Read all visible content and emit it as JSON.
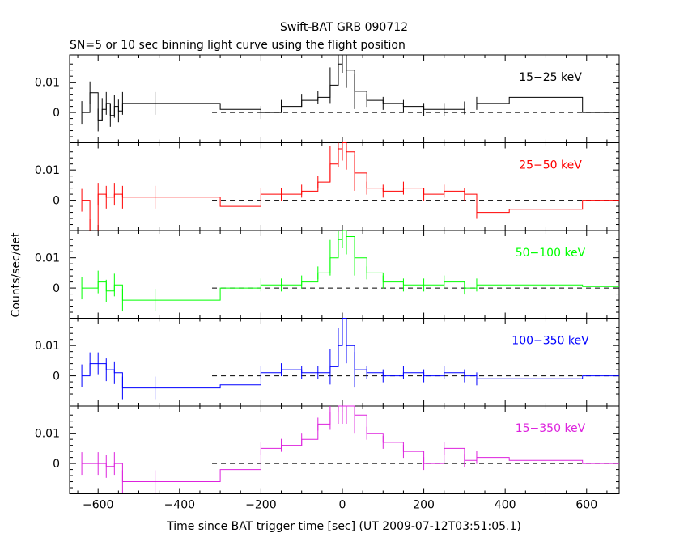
{
  "chart_data": {
    "type": "line",
    "title": "Swift-BAT GRB 090712",
    "subtitle": "SN=5 or 10 sec binning light curve using the flight position",
    "xlabel": "Time since BAT trigger time [sec] (UT 2009-07-12T03:51:05.1)",
    "ylabel": "Counts/sec/det",
    "xlim": [
      -670,
      680
    ],
    "ylim": [
      -0.01,
      0.019
    ],
    "x_ticks": [
      -600,
      -400,
      -200,
      0,
      200,
      400,
      600
    ],
    "y_ticks": [
      0,
      0.01
    ],
    "y_tick_labels": [
      "0",
      "0.01"
    ],
    "grid": false,
    "reference_line": {
      "y": 0,
      "x_range": [
        -320,
        680
      ],
      "style": "dashed"
    },
    "panels": [
      {
        "name": "15-25 keV",
        "label": "15−25 keV",
        "color": "#000000",
        "series": [
          {
            "x": -640,
            "y": 0.0
          },
          {
            "x": -620,
            "y": 0.0065
          },
          {
            "x": -600,
            "y": -0.0025
          },
          {
            "x": -590,
            "y": 0.001
          },
          {
            "x": -580,
            "y": 0.003
          },
          {
            "x": -570,
            "y": -0.001
          },
          {
            "x": -560,
            "y": 0.002
          },
          {
            "x": -550,
            "y": 0.0005
          },
          {
            "x": -540,
            "y": 0.003
          },
          {
            "x": -460,
            "y": 0.003
          },
          {
            "x": -300,
            "y": 0.001
          },
          {
            "x": -200,
            "y": 0.0
          },
          {
            "x": -150,
            "y": 0.002
          },
          {
            "x": -100,
            "y": 0.004
          },
          {
            "x": -60,
            "y": 0.005
          },
          {
            "x": -30,
            "y": 0.009
          },
          {
            "x": -10,
            "y": 0.016
          },
          {
            "x": 0,
            "y": 0.019
          },
          {
            "x": 10,
            "y": 0.014
          },
          {
            "x": 30,
            "y": 0.007
          },
          {
            "x": 60,
            "y": 0.004
          },
          {
            "x": 100,
            "y": 0.003
          },
          {
            "x": 150,
            "y": 0.002
          },
          {
            "x": 200,
            "y": 0.001
          },
          {
            "x": 250,
            "y": 0.001
          },
          {
            "x": 300,
            "y": 0.0015
          },
          {
            "x": 330,
            "y": 0.003
          },
          {
            "x": 410,
            "y": 0.005
          },
          {
            "x": 590,
            "y": 0.0
          },
          {
            "x": 680,
            "y": 0.0
          }
        ]
      },
      {
        "name": "25-50 keV",
        "label": "25−50 keV",
        "color": "#ff0000",
        "series": [
          {
            "x": -640,
            "y": 0.0
          },
          {
            "x": -620,
            "y": -0.01
          },
          {
            "x": -600,
            "y": 0.002
          },
          {
            "x": -580,
            "y": 0.001
          },
          {
            "x": -560,
            "y": 0.002
          },
          {
            "x": -540,
            "y": 0.001
          },
          {
            "x": -460,
            "y": 0.001
          },
          {
            "x": -300,
            "y": -0.002
          },
          {
            "x": -200,
            "y": 0.002
          },
          {
            "x": -150,
            "y": 0.002
          },
          {
            "x": -100,
            "y": 0.003
          },
          {
            "x": -60,
            "y": 0.006
          },
          {
            "x": -30,
            "y": 0.012
          },
          {
            "x": -10,
            "y": 0.017
          },
          {
            "x": 0,
            "y": 0.019
          },
          {
            "x": 10,
            "y": 0.016
          },
          {
            "x": 30,
            "y": 0.009
          },
          {
            "x": 60,
            "y": 0.004
          },
          {
            "x": 100,
            "y": 0.003
          },
          {
            "x": 150,
            "y": 0.004
          },
          {
            "x": 200,
            "y": 0.002
          },
          {
            "x": 250,
            "y": 0.003
          },
          {
            "x": 300,
            "y": 0.002
          },
          {
            "x": 330,
            "y": -0.004
          },
          {
            "x": 410,
            "y": -0.003
          },
          {
            "x": 590,
            "y": 0.0
          },
          {
            "x": 680,
            "y": 0.0
          }
        ]
      },
      {
        "name": "50-100 keV",
        "label": "50−100 keV",
        "color": "#00ff00",
        "series": [
          {
            "x": -640,
            "y": 0.0
          },
          {
            "x": -600,
            "y": 0.002
          },
          {
            "x": -580,
            "y": -0.001
          },
          {
            "x": -560,
            "y": 0.001
          },
          {
            "x": -540,
            "y": -0.004
          },
          {
            "x": -460,
            "y": -0.004
          },
          {
            "x": -300,
            "y": 0.0
          },
          {
            "x": -200,
            "y": 0.001
          },
          {
            "x": -150,
            "y": 0.001
          },
          {
            "x": -100,
            "y": 0.002
          },
          {
            "x": -60,
            "y": 0.005
          },
          {
            "x": -30,
            "y": 0.01
          },
          {
            "x": -10,
            "y": 0.016
          },
          {
            "x": 0,
            "y": 0.019
          },
          {
            "x": 10,
            "y": 0.017
          },
          {
            "x": 30,
            "y": 0.01
          },
          {
            "x": 60,
            "y": 0.005
          },
          {
            "x": 100,
            "y": 0.002
          },
          {
            "x": 150,
            "y": 0.001
          },
          {
            "x": 200,
            "y": 0.001
          },
          {
            "x": 250,
            "y": 0.002
          },
          {
            "x": 300,
            "y": 0.0
          },
          {
            "x": 330,
            "y": 0.001
          },
          {
            "x": 410,
            "y": 0.001
          },
          {
            "x": 590,
            "y": 0.0005
          },
          {
            "x": 680,
            "y": 0.0005
          }
        ]
      },
      {
        "name": "100-350 keV",
        "label": "100−350 keV",
        "color": "#0000ff",
        "series": [
          {
            "x": -640,
            "y": 0.0
          },
          {
            "x": -620,
            "y": 0.004
          },
          {
            "x": -600,
            "y": 0.004
          },
          {
            "x": -580,
            "y": 0.002
          },
          {
            "x": -560,
            "y": 0.001
          },
          {
            "x": -540,
            "y": -0.004
          },
          {
            "x": -460,
            "y": -0.004
          },
          {
            "x": -300,
            "y": -0.003
          },
          {
            "x": -200,
            "y": 0.001
          },
          {
            "x": -150,
            "y": 0.002
          },
          {
            "x": -100,
            "y": 0.001
          },
          {
            "x": -60,
            "y": 0.001
          },
          {
            "x": -30,
            "y": 0.003
          },
          {
            "x": -10,
            "y": 0.01
          },
          {
            "x": 0,
            "y": 0.019
          },
          {
            "x": 10,
            "y": 0.01
          },
          {
            "x": 30,
            "y": 0.002
          },
          {
            "x": 60,
            "y": 0.001
          },
          {
            "x": 100,
            "y": 0.0
          },
          {
            "x": 150,
            "y": 0.001
          },
          {
            "x": 200,
            "y": 0.0
          },
          {
            "x": 250,
            "y": 0.001
          },
          {
            "x": 300,
            "y": 0.0
          },
          {
            "x": 330,
            "y": -0.001
          },
          {
            "x": 410,
            "y": -0.001
          },
          {
            "x": 590,
            "y": 0.0
          },
          {
            "x": 680,
            "y": 0.0
          }
        ]
      },
      {
        "name": "15-350 keV",
        "label": "15−350 keV",
        "color": "#dd22dd",
        "series": [
          {
            "x": -640,
            "y": 0.0
          },
          {
            "x": -600,
            "y": 0.0
          },
          {
            "x": -580,
            "y": -0.001
          },
          {
            "x": -560,
            "y": 0.0
          },
          {
            "x": -540,
            "y": -0.006
          },
          {
            "x": -460,
            "y": -0.006
          },
          {
            "x": -300,
            "y": -0.002
          },
          {
            "x": -200,
            "y": 0.005
          },
          {
            "x": -150,
            "y": 0.006
          },
          {
            "x": -100,
            "y": 0.008
          },
          {
            "x": -60,
            "y": 0.013
          },
          {
            "x": -30,
            "y": 0.017
          },
          {
            "x": -10,
            "y": 0.019
          },
          {
            "x": 0,
            "y": 0.019
          },
          {
            "x": 10,
            "y": 0.019
          },
          {
            "x": 30,
            "y": 0.016
          },
          {
            "x": 60,
            "y": 0.01
          },
          {
            "x": 100,
            "y": 0.007
          },
          {
            "x": 150,
            "y": 0.004
          },
          {
            "x": 200,
            "y": 0.0
          },
          {
            "x": 250,
            "y": 0.005
          },
          {
            "x": 300,
            "y": 0.001
          },
          {
            "x": 330,
            "y": 0.002
          },
          {
            "x": 410,
            "y": 0.001
          },
          {
            "x": 590,
            "y": 0.0
          },
          {
            "x": 680,
            "y": 0.0
          }
        ]
      }
    ]
  }
}
